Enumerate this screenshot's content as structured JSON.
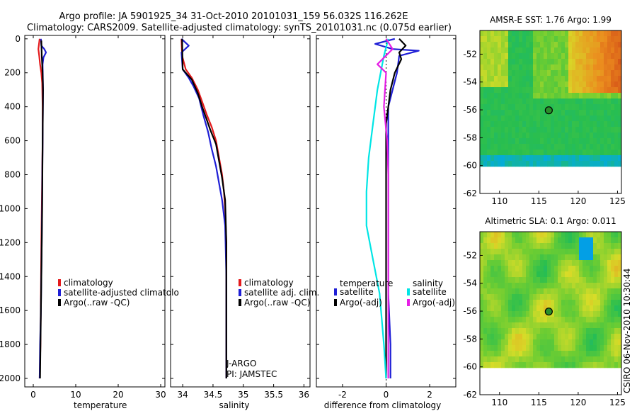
{
  "figure": {
    "title_line1": "Argo profile: JA 5901925_34 31-Oct-2010 20101031_159 56.032S 116.262E",
    "title_line2": "Climatology: CARS2009. Satellite-adjusted climatology: synTS_20101031.nc (0.075d earlier)",
    "side_stamp": "CSIRO 06-Nov-2010 10:30:44"
  },
  "colors": {
    "climatology": "#e41a1c",
    "satellite": "#1f1fd6",
    "argo": "#000000",
    "sat_salinity": "#00e5e5",
    "argo_salinity": "#e61ee6"
  },
  "chart_data": [
    {
      "type": "line",
      "id": "temperature",
      "xlabel": "temperature",
      "ylabel": "",
      "xlim": [
        -2,
        31
      ],
      "ylim": [
        2050,
        -20
      ],
      "xticks": [
        0,
        10,
        20,
        30
      ],
      "yticks": [
        0,
        200,
        400,
        600,
        800,
        1000,
        1200,
        1400,
        1600,
        1800,
        2000
      ],
      "legend": [
        "climatology",
        "satellite-adjusted climatolo",
        "Argo(..raw -QC)"
      ],
      "series": [
        {
          "name": "climatology",
          "color": "#e41a1c",
          "x": [
            1.5,
            1.2,
            1.4,
            1.6,
            1.9,
            2.1,
            2.2,
            2.2,
            2.1,
            2.0,
            1.9,
            1.8,
            1.7,
            1.5
          ],
          "y": [
            0,
            60,
            100,
            150,
            200,
            260,
            400,
            600,
            800,
            1000,
            1200,
            1500,
            1800,
            2000
          ]
        },
        {
          "name": "satellite-adjusted climatolo",
          "color": "#1f1fd6",
          "x": [
            1.8,
            1.9,
            2.6,
            3.0,
            2.4,
            2.2,
            2.3,
            2.2,
            2.1,
            2.0,
            1.9,
            1.8,
            1.6,
            1.5
          ],
          "y": [
            0,
            40,
            60,
            80,
            110,
            150,
            300,
            600,
            900,
            1200,
            1400,
            1600,
            1800,
            2000
          ]
        },
        {
          "name": "Argo(..raw -QC)",
          "color": "#000000",
          "x": [
            1.9,
            2.0,
            2.2,
            2.3,
            2.2,
            2.1,
            1.9,
            1.7,
            1.6
          ],
          "y": [
            10,
            100,
            200,
            300,
            600,
            1000,
            1400,
            1800,
            2000
          ]
        }
      ]
    },
    {
      "type": "line",
      "id": "salinity",
      "xlabel": "salinity",
      "ylabel": "",
      "xlim": [
        33.8,
        36.1
      ],
      "ylim": [
        2050,
        -20
      ],
      "xticks": [
        34,
        34.5,
        35,
        35.5,
        36
      ],
      "legend": [
        "climatology",
        "satellite adj. clim.",
        "Argo(..raw -QC)"
      ],
      "annotation": [
        "J-ARGO",
        "PI: JAMSTEC"
      ],
      "series": [
        {
          "name": "climatology",
          "color": "#e41a1c",
          "x": [
            33.98,
            33.99,
            34.05,
            34.15,
            34.25,
            34.33,
            34.4,
            34.48,
            34.55,
            34.6,
            34.65,
            34.68,
            34.7,
            34.72,
            34.72,
            34.72
          ],
          "y": [
            0,
            100,
            180,
            230,
            300,
            380,
            450,
            520,
            600,
            700,
            800,
            900,
            1000,
            1200,
            1600,
            2000
          ]
        },
        {
          "name": "satellite adj. clim.",
          "color": "#1f1fd6",
          "x": [
            33.98,
            34.1,
            33.98,
            34.0,
            34.1,
            34.18,
            34.27,
            34.34,
            34.42,
            34.48,
            34.55,
            34.6,
            34.65,
            34.7,
            34.72,
            34.72
          ],
          "y": [
            0,
            40,
            80,
            180,
            230,
            280,
            350,
            450,
            550,
            650,
            750,
            850,
            950,
            1100,
            1400,
            2000
          ]
        },
        {
          "name": "Argo(..raw -QC)",
          "color": "#000000",
          "x": [
            33.99,
            34.0,
            34.05,
            34.15,
            34.25,
            34.32,
            34.38,
            34.46,
            34.55,
            34.6,
            34.65,
            34.7,
            34.72,
            34.72
          ],
          "y": [
            0,
            180,
            200,
            240,
            320,
            400,
            460,
            540,
            620,
            720,
            820,
            950,
            1200,
            2000
          ]
        }
      ]
    },
    {
      "type": "line",
      "id": "difference",
      "xlabel": "difference from climatology",
      "ylabel": "",
      "xlim": [
        -3.2,
        3.2
      ],
      "ylim": [
        2050,
        -20
      ],
      "xticks": [
        -2,
        0,
        2
      ],
      "legend_headers": [
        "temperature",
        "salinity"
      ],
      "legend": [
        "satellite",
        "Argo(-adj)",
        "satellite",
        "Argo(-adj)"
      ],
      "series": [
        {
          "name": "satellite",
          "group": "temperature",
          "color": "#1f1fd6",
          "x": [
            0.4,
            -0.5,
            0.3,
            1.5,
            0.6,
            0.5,
            0.3,
            0.1,
            0.1,
            0.1,
            0.1,
            0.1,
            0.2,
            0.2
          ],
          "y": [
            0,
            30,
            60,
            70,
            100,
            200,
            300,
            400,
            600,
            900,
            1200,
            1500,
            1800,
            2000
          ]
        },
        {
          "name": "Argo(-adj)",
          "group": "temperature",
          "color": "#000000",
          "x": [
            0.6,
            0.9,
            0.6,
            0.7,
            0.4,
            0.2,
            0.1,
            0.0,
            0.0,
            0.0,
            0.0,
            0.0
          ],
          "y": [
            0,
            40,
            80,
            120,
            200,
            300,
            400,
            500,
            800,
            1200,
            1600,
            2000
          ]
        },
        {
          "name": "satellite",
          "group": "salinity",
          "color": "#00e5e5",
          "x": [
            0.1,
            -0.1,
            -0.4,
            -0.6,
            -0.8,
            -0.9,
            -0.9,
            -0.6,
            -0.3,
            -0.1,
            0.0
          ],
          "y": [
            0,
            100,
            300,
            500,
            700,
            900,
            1100,
            1300,
            1500,
            1800,
            2000
          ]
        },
        {
          "name": "Argo(-adj)",
          "group": "salinity",
          "color": "#e61ee6",
          "x": [
            0.0,
            0.3,
            -0.4,
            0.0,
            -0.1,
            0.05,
            0.1,
            0.1,
            0.1,
            0.1
          ],
          "y": [
            0,
            60,
            150,
            200,
            400,
            600,
            800,
            1200,
            1600,
            2000
          ]
        }
      ]
    },
    {
      "type": "heatmap",
      "id": "sst_map",
      "title": "AMSR-E SST: 1.76 Argo: 1.99",
      "xlim": [
        107.5,
        125.5
      ],
      "ylim": [
        -62,
        -50.3
      ],
      "xticks": [
        110,
        115,
        120,
        125
      ],
      "yticks": [
        -52,
        -54,
        -56,
        -58,
        -60,
        -62
      ],
      "marker": [
        116.262,
        -56.032
      ]
    },
    {
      "type": "heatmap",
      "id": "sla_map",
      "title": "Altimetric SLA: 0.1 Argo: 0.011",
      "xlim": [
        107.5,
        125.5
      ],
      "ylim": [
        -62,
        -50.3
      ],
      "xticks": [
        110,
        115,
        120,
        125
      ],
      "yticks": [
        -52,
        -54,
        -56,
        -58,
        -60,
        -62
      ],
      "marker": [
        116.262,
        -56.032
      ]
    }
  ]
}
